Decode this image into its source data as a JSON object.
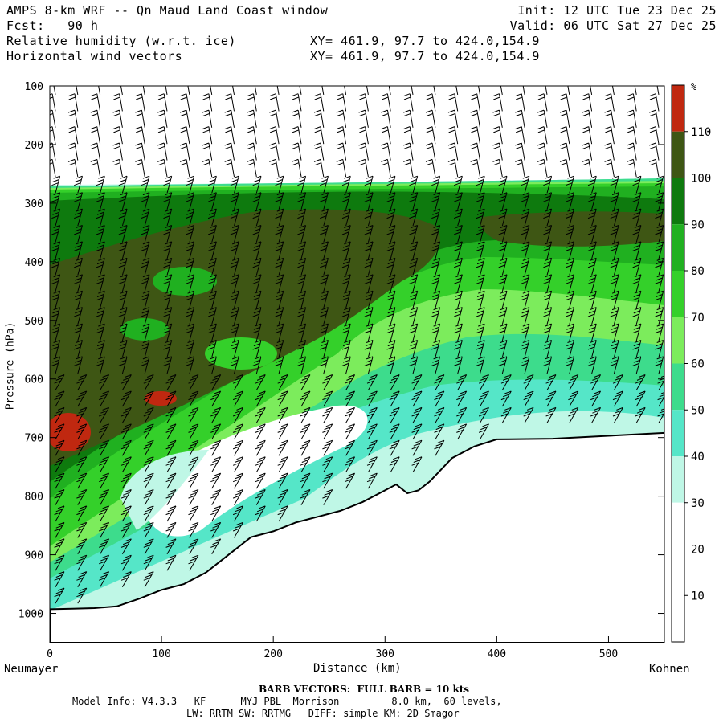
{
  "header": {
    "title": "AMPS 8-km WRF -- Qn Maud Land Coast window",
    "forecast": "Fcst:   90 h",
    "field1": "Relative humidity (w.r.t. ice)",
    "field2": "Horizontal wind vectors",
    "init": "Init: 12 UTC Tue 23 Dec 25",
    "valid": "Valid: 06 UTC Sat 27 Dec 25",
    "xy1": "XY= 461.9, 97.7 to 424.0,154.9",
    "xy2": "XY= 461.9, 97.7 to 424.0,154.9"
  },
  "footer": {
    "barb_note": "BARB VECTORS:  FULL BARB = 10 kts",
    "model_info": "Model Info: V4.3.3   KF      MYJ PBL  Morrison         8.0 km,  60 levels,",
    "physics": "LW: RRTM SW: RRTMG   DIFF: simple KM: 2D Smagor"
  },
  "chart_data": {
    "type": "heatmap",
    "xlabel": "Distance (km)",
    "ylabel": "Pressure (hPa)",
    "x_left_label": "Neumayer",
    "x_right_label": "Kohnen",
    "xlim": [
      0,
      550
    ],
    "ylim": [
      1050,
      100
    ],
    "x_ticks": [
      0,
      100,
      200,
      300,
      400,
      500
    ],
    "y_ticks": [
      100,
      200,
      300,
      400,
      500,
      600,
      700,
      800,
      900,
      1000
    ],
    "colorbar": {
      "unit": "%",
      "levels": [
        10,
        20,
        30,
        40,
        50,
        60,
        70,
        80,
        90,
        100,
        110
      ],
      "colors": [
        "#ffffff",
        "#ffffff",
        "#ffffff",
        "#bff7e6",
        "#55e6c8",
        "#3ddc8c",
        "#7cec5c",
        "#34d02a",
        "#20b020",
        "#0e7a0e",
        "#3e5614",
        "#c02810"
      ]
    },
    "terrain": {
      "distance_km": [
        0,
        20,
        40,
        60,
        80,
        100,
        120,
        140,
        160,
        180,
        200,
        220,
        240,
        260,
        280,
        300,
        310,
        320,
        330,
        340,
        350,
        360,
        380,
        400,
        450,
        500,
        550
      ],
      "surface_pressure_hpa": [
        993,
        992,
        991,
        988,
        975,
        960,
        950,
        930,
        900,
        870,
        860,
        845,
        835,
        825,
        810,
        790,
        780,
        795,
        790,
        775,
        755,
        735,
        715,
        703,
        702,
        697,
        692
      ]
    },
    "humidity_regions": [
      {
        "name": "saturated layer",
        "rh_percent": 100,
        "x_range_km": [
          0,
          400
        ],
        "p_top_hpa": 300,
        "p_bottom_hpa": 550
      },
      {
        "name": "supersaturated pocket",
        "rh_percent": 110,
        "x_km": 20,
        "p_hpa": 690
      },
      {
        "name": "supersaturated pocket",
        "rh_percent": 110,
        "x_km": 100,
        "p_hpa": 635
      },
      {
        "name": "dry layer",
        "rh_percent": 20,
        "x_range_km": [
          80,
          300
        ],
        "p_top_hpa": 650,
        "p_bottom_hpa": 850
      },
      {
        "name": "upper dry air",
        "rh_percent": 10,
        "x_range_km": [
          0,
          550
        ],
        "p_top_hpa": 100,
        "p_bottom_hpa": 260
      }
    ]
  }
}
